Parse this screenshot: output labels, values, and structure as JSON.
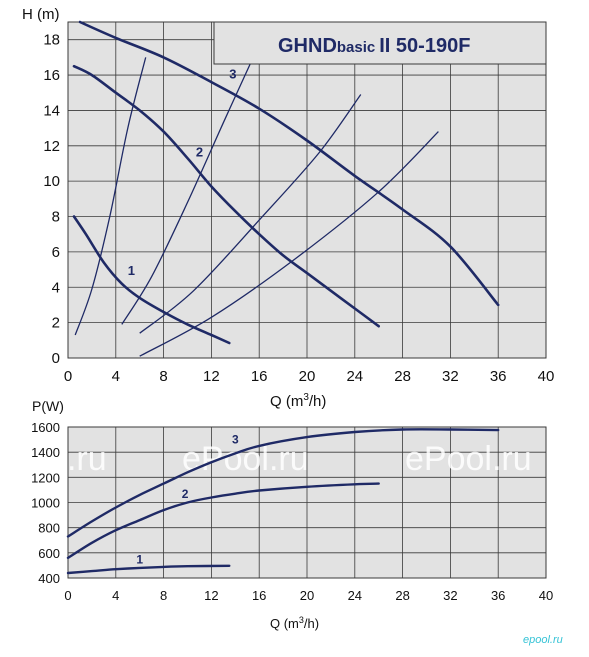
{
  "colors": {
    "plot_bg": "#e2e2e2",
    "grid": "#3a3a3a",
    "curve": "#1f2a66",
    "title": "#1f2a66",
    "axis_text": "#111111",
    "watermark": "#ffffff",
    "logo": "#35c3d6"
  },
  "watermark": {
    "text": "ePool.ru"
  },
  "logo": {
    "text": "epool.ru"
  },
  "chart_data": [
    {
      "type": "line",
      "title": "GHNDbasic II  50-190F",
      "title_main": "GHND",
      "title_small": "basic",
      "title_rest": "II  50-190F",
      "ylabel": "H (m)",
      "xlabel_prefix": "Q (m",
      "xlabel_sup": "3",
      "xlabel_suffix": "/h)",
      "xlim": [
        0,
        40
      ],
      "ylim": [
        0,
        19
      ],
      "xticks": [
        0,
        4,
        8,
        12,
        16,
        20,
        24,
        28,
        32,
        36,
        40
      ],
      "yticks": [
        0,
        2,
        4,
        6,
        8,
        10,
        12,
        14,
        16,
        18
      ],
      "grid": true,
      "series": [
        {
          "name": "1",
          "label_at": [
            5.3,
            4.7
          ],
          "points": [
            [
              0.5,
              8.0
            ],
            [
              1.5,
              7.0
            ],
            [
              3.0,
              5.4
            ],
            [
              4.5,
              4.2
            ],
            [
              6.0,
              3.4
            ],
            [
              8.0,
              2.6
            ],
            [
              10.0,
              1.9
            ],
            [
              12.0,
              1.3
            ],
            [
              13.5,
              0.85
            ]
          ]
        },
        {
          "name": "2",
          "label_at": [
            11.0,
            11.4
          ],
          "points": [
            [
              0.5,
              16.5
            ],
            [
              2.0,
              16.0
            ],
            [
              4.0,
              15.0
            ],
            [
              6.0,
              14.0
            ],
            [
              8.0,
              12.8
            ],
            [
              10.0,
              11.3
            ],
            [
              12.0,
              9.7
            ],
            [
              14.0,
              8.3
            ],
            [
              16.0,
              7.0
            ],
            [
              18.0,
              5.8
            ],
            [
              20.0,
              4.8
            ],
            [
              22.0,
              3.8
            ],
            [
              24.0,
              2.8
            ],
            [
              26.0,
              1.8
            ]
          ]
        },
        {
          "name": "3",
          "label_at": [
            13.8,
            15.8
          ],
          "points": [
            [
              1.0,
              19.0
            ],
            [
              4.0,
              18.1
            ],
            [
              8.0,
              17.0
            ],
            [
              12.0,
              15.6
            ],
            [
              16.0,
              14.1
            ],
            [
              20.0,
              12.3
            ],
            [
              24.0,
              10.3
            ],
            [
              28.0,
              8.4
            ],
            [
              32.0,
              6.3
            ],
            [
              36.0,
              3.0
            ]
          ]
        }
      ],
      "system_curves": [
        {
          "points": [
            [
              0.6,
              1.3
            ],
            [
              2.0,
              3.9
            ],
            [
              3.5,
              8.0
            ],
            [
              5.0,
              13.0
            ],
            [
              6.5,
              17.0
            ]
          ]
        },
        {
          "points": [
            [
              4.5,
              1.9
            ],
            [
              7.0,
              4.6
            ],
            [
              10.0,
              8.8
            ],
            [
              13.0,
              13.3
            ],
            [
              15.5,
              17.0
            ]
          ]
        },
        {
          "points": [
            [
              6.0,
              1.4
            ],
            [
              10.5,
              3.8
            ],
            [
              16.0,
              7.8
            ],
            [
              21.0,
              11.6
            ],
            [
              24.5,
              14.9
            ]
          ]
        },
        {
          "points": [
            [
              6.0,
              0.1
            ],
            [
              12.0,
              2.3
            ],
            [
              19.0,
              5.6
            ],
            [
              26.0,
              9.4
            ],
            [
              31.0,
              12.8
            ]
          ]
        }
      ]
    },
    {
      "type": "line",
      "ylabel": "P(W)",
      "xlabel_prefix": "Q (m",
      "xlabel_sup": "3",
      "xlabel_suffix": "/h)",
      "xlim": [
        0,
        40
      ],
      "ylim": [
        400,
        1600
      ],
      "xticks": [
        0,
        4,
        8,
        12,
        16,
        20,
        24,
        28,
        32,
        36,
        40
      ],
      "yticks": [
        400,
        600,
        800,
        1000,
        1200,
        1400,
        1600
      ],
      "grid": true,
      "series": [
        {
          "name": "1",
          "label_at": [
            6.0,
            517
          ],
          "points": [
            [
              0.0,
              440
            ],
            [
              2.0,
              455
            ],
            [
              4.0,
              470
            ],
            [
              6.0,
              480
            ],
            [
              8.0,
              488
            ],
            [
              10.0,
              494
            ],
            [
              13.5,
              497
            ]
          ]
        },
        {
          "name": "2",
          "label_at": [
            9.8,
            1035
          ],
          "points": [
            [
              0.0,
              560
            ],
            [
              2.0,
              680
            ],
            [
              4.0,
              780
            ],
            [
              6.0,
              860
            ],
            [
              8.0,
              940
            ],
            [
              10.0,
              1000
            ],
            [
              12.0,
              1040
            ],
            [
              14.0,
              1070
            ],
            [
              16.0,
              1095
            ],
            [
              20.0,
              1125
            ],
            [
              24.0,
              1145
            ],
            [
              26.0,
              1150
            ]
          ]
        },
        {
          "name": "3",
          "label_at": [
            14.0,
            1470
          ],
          "points": [
            [
              0.0,
              730
            ],
            [
              2.0,
              850
            ],
            [
              4.0,
              960
            ],
            [
              6.0,
              1060
            ],
            [
              8.0,
              1150
            ],
            [
              10.0,
              1240
            ],
            [
              12.0,
              1320
            ],
            [
              14.0,
              1390
            ],
            [
              16.0,
              1450
            ],
            [
              20.0,
              1520
            ],
            [
              24.0,
              1560
            ],
            [
              28.0,
              1580
            ],
            [
              32.0,
              1580
            ],
            [
              36.0,
              1575
            ]
          ]
        }
      ]
    }
  ]
}
